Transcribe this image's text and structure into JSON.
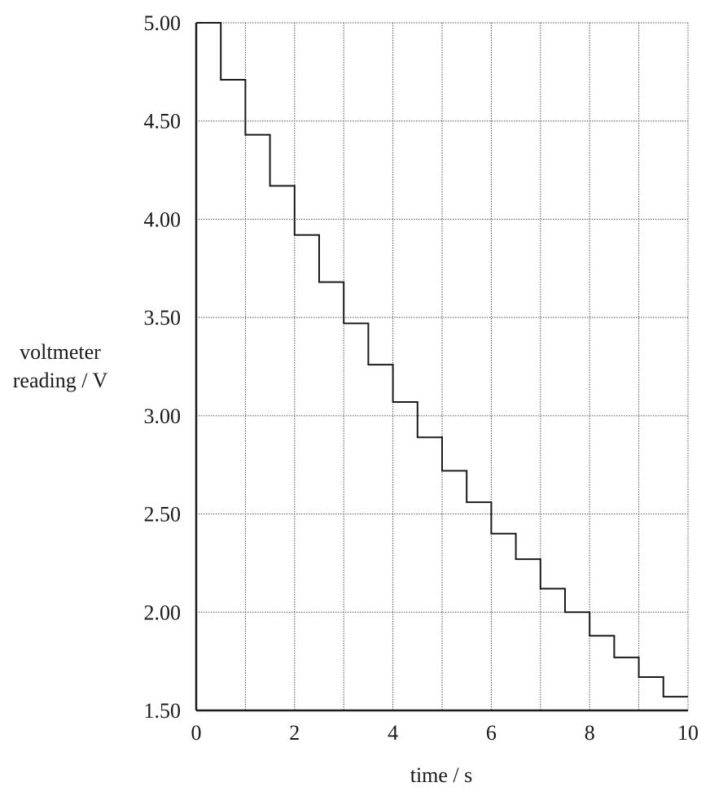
{
  "chart_data": {
    "type": "line",
    "line_style": "step",
    "xlabel": "time / s",
    "ylabel_lines": [
      "voltmeter",
      "reading / V"
    ],
    "xlim": [
      0,
      10
    ],
    "ylim": [
      1.5,
      5.0
    ],
    "x_ticks": [
      "0",
      "2",
      "4",
      "6",
      "8",
      "10"
    ],
    "y_ticks": [
      "5.00",
      "4.50",
      "4.00",
      "3.50",
      "3.00",
      "2.50",
      "2.00",
      "1.50"
    ],
    "x_tick_values": [
      0,
      2,
      4,
      6,
      8,
      10
    ],
    "y_tick_values": [
      5.0,
      4.5,
      4.0,
      3.5,
      3.0,
      2.5,
      2.0,
      1.5
    ],
    "grid": true,
    "series": [
      {
        "x": [
          0,
          0.5,
          1.0,
          1.5,
          2.0,
          2.5,
          3.0,
          3.5,
          4.0,
          4.5,
          5.0,
          5.5,
          6.0,
          6.5,
          7.0,
          7.5,
          8.0,
          8.5,
          9.0,
          9.5,
          10.0
        ],
        "values": [
          5.0,
          4.71,
          4.43,
          4.17,
          3.92,
          3.68,
          3.47,
          3.26,
          3.07,
          2.89,
          2.72,
          2.56,
          2.4,
          2.27,
          2.12,
          2.0,
          1.88,
          1.77,
          1.67,
          1.57,
          1.57
        ]
      }
    ],
    "colors": {
      "line": "#1a1a1a",
      "grid": "#555555"
    }
  }
}
